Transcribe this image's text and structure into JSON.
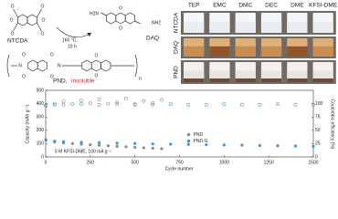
{
  "scheme": {
    "reactant": "NTCDA",
    "reagent": "DAQ",
    "amine_left": "H2N",
    "amine_right": "NH2",
    "atom_o": "O",
    "atom_n": "N",
    "temperature": "160 °C,",
    "time": "10 h",
    "repeat": "n",
    "product": "PND,",
    "product_note": "insoluble"
  },
  "photos": {
    "solvents": [
      "TEP",
      "EMC",
      "DMC",
      "DEC",
      "DME",
      "KFSI-DME"
    ],
    "rows": [
      "NTCDA",
      "DAQ",
      "PND"
    ]
  },
  "chart_data": {
    "type": "scatter",
    "xlabel": "Cycle number",
    "ylabel": "Capacity (mAh g⁻¹)",
    "y2label": "Coulombic efficiency (%)",
    "annotation": "5 M KFSI-DME, 100 mA g⁻¹",
    "xlim": [
      0,
      1500
    ],
    "xticks": [
      0,
      250,
      500,
      750,
      1000,
      1250,
      1500
    ],
    "ylim": [
      0,
      500
    ],
    "yticks": [
      0,
      100,
      200,
      300,
      400,
      500
    ],
    "y2lim": [
      0,
      125
    ],
    "y2ticks": [
      0,
      25,
      50,
      75,
      100
    ],
    "legend": "center",
    "series": [
      {
        "name": "PND",
        "color": "#8c8c8c",
        "x": [
          1,
          50,
          100,
          150,
          200,
          250,
          300,
          350,
          400,
          450,
          500,
          550,
          600,
          650
        ],
        "capacity": [
          125,
          112,
          105,
          100,
          96,
          92,
          88,
          84,
          80,
          76,
          72,
          69,
          65,
          62
        ],
        "efficiency": [
          96,
          100,
          104,
          99,
          106,
          101,
          108,
          100,
          103,
          110,
          99,
          105,
          101,
          107
        ]
      },
      {
        "name": "PND-G",
        "color": "#3a9ad9",
        "x": [
          1,
          50,
          100,
          200,
          300,
          400,
          500,
          600,
          700,
          800,
          900,
          1000,
          1100,
          1200,
          1300,
          1400,
          1500
        ],
        "capacity": [
          130,
          118,
          115,
          110,
          107,
          104,
          101,
          98,
          96,
          94,
          92,
          90,
          88,
          86,
          84,
          82,
          80
        ],
        "efficiency": [
          97,
          98,
          98,
          99,
          98,
          99,
          98,
          98,
          99,
          98,
          98,
          99,
          98,
          98,
          99,
          98,
          98
        ]
      }
    ]
  }
}
